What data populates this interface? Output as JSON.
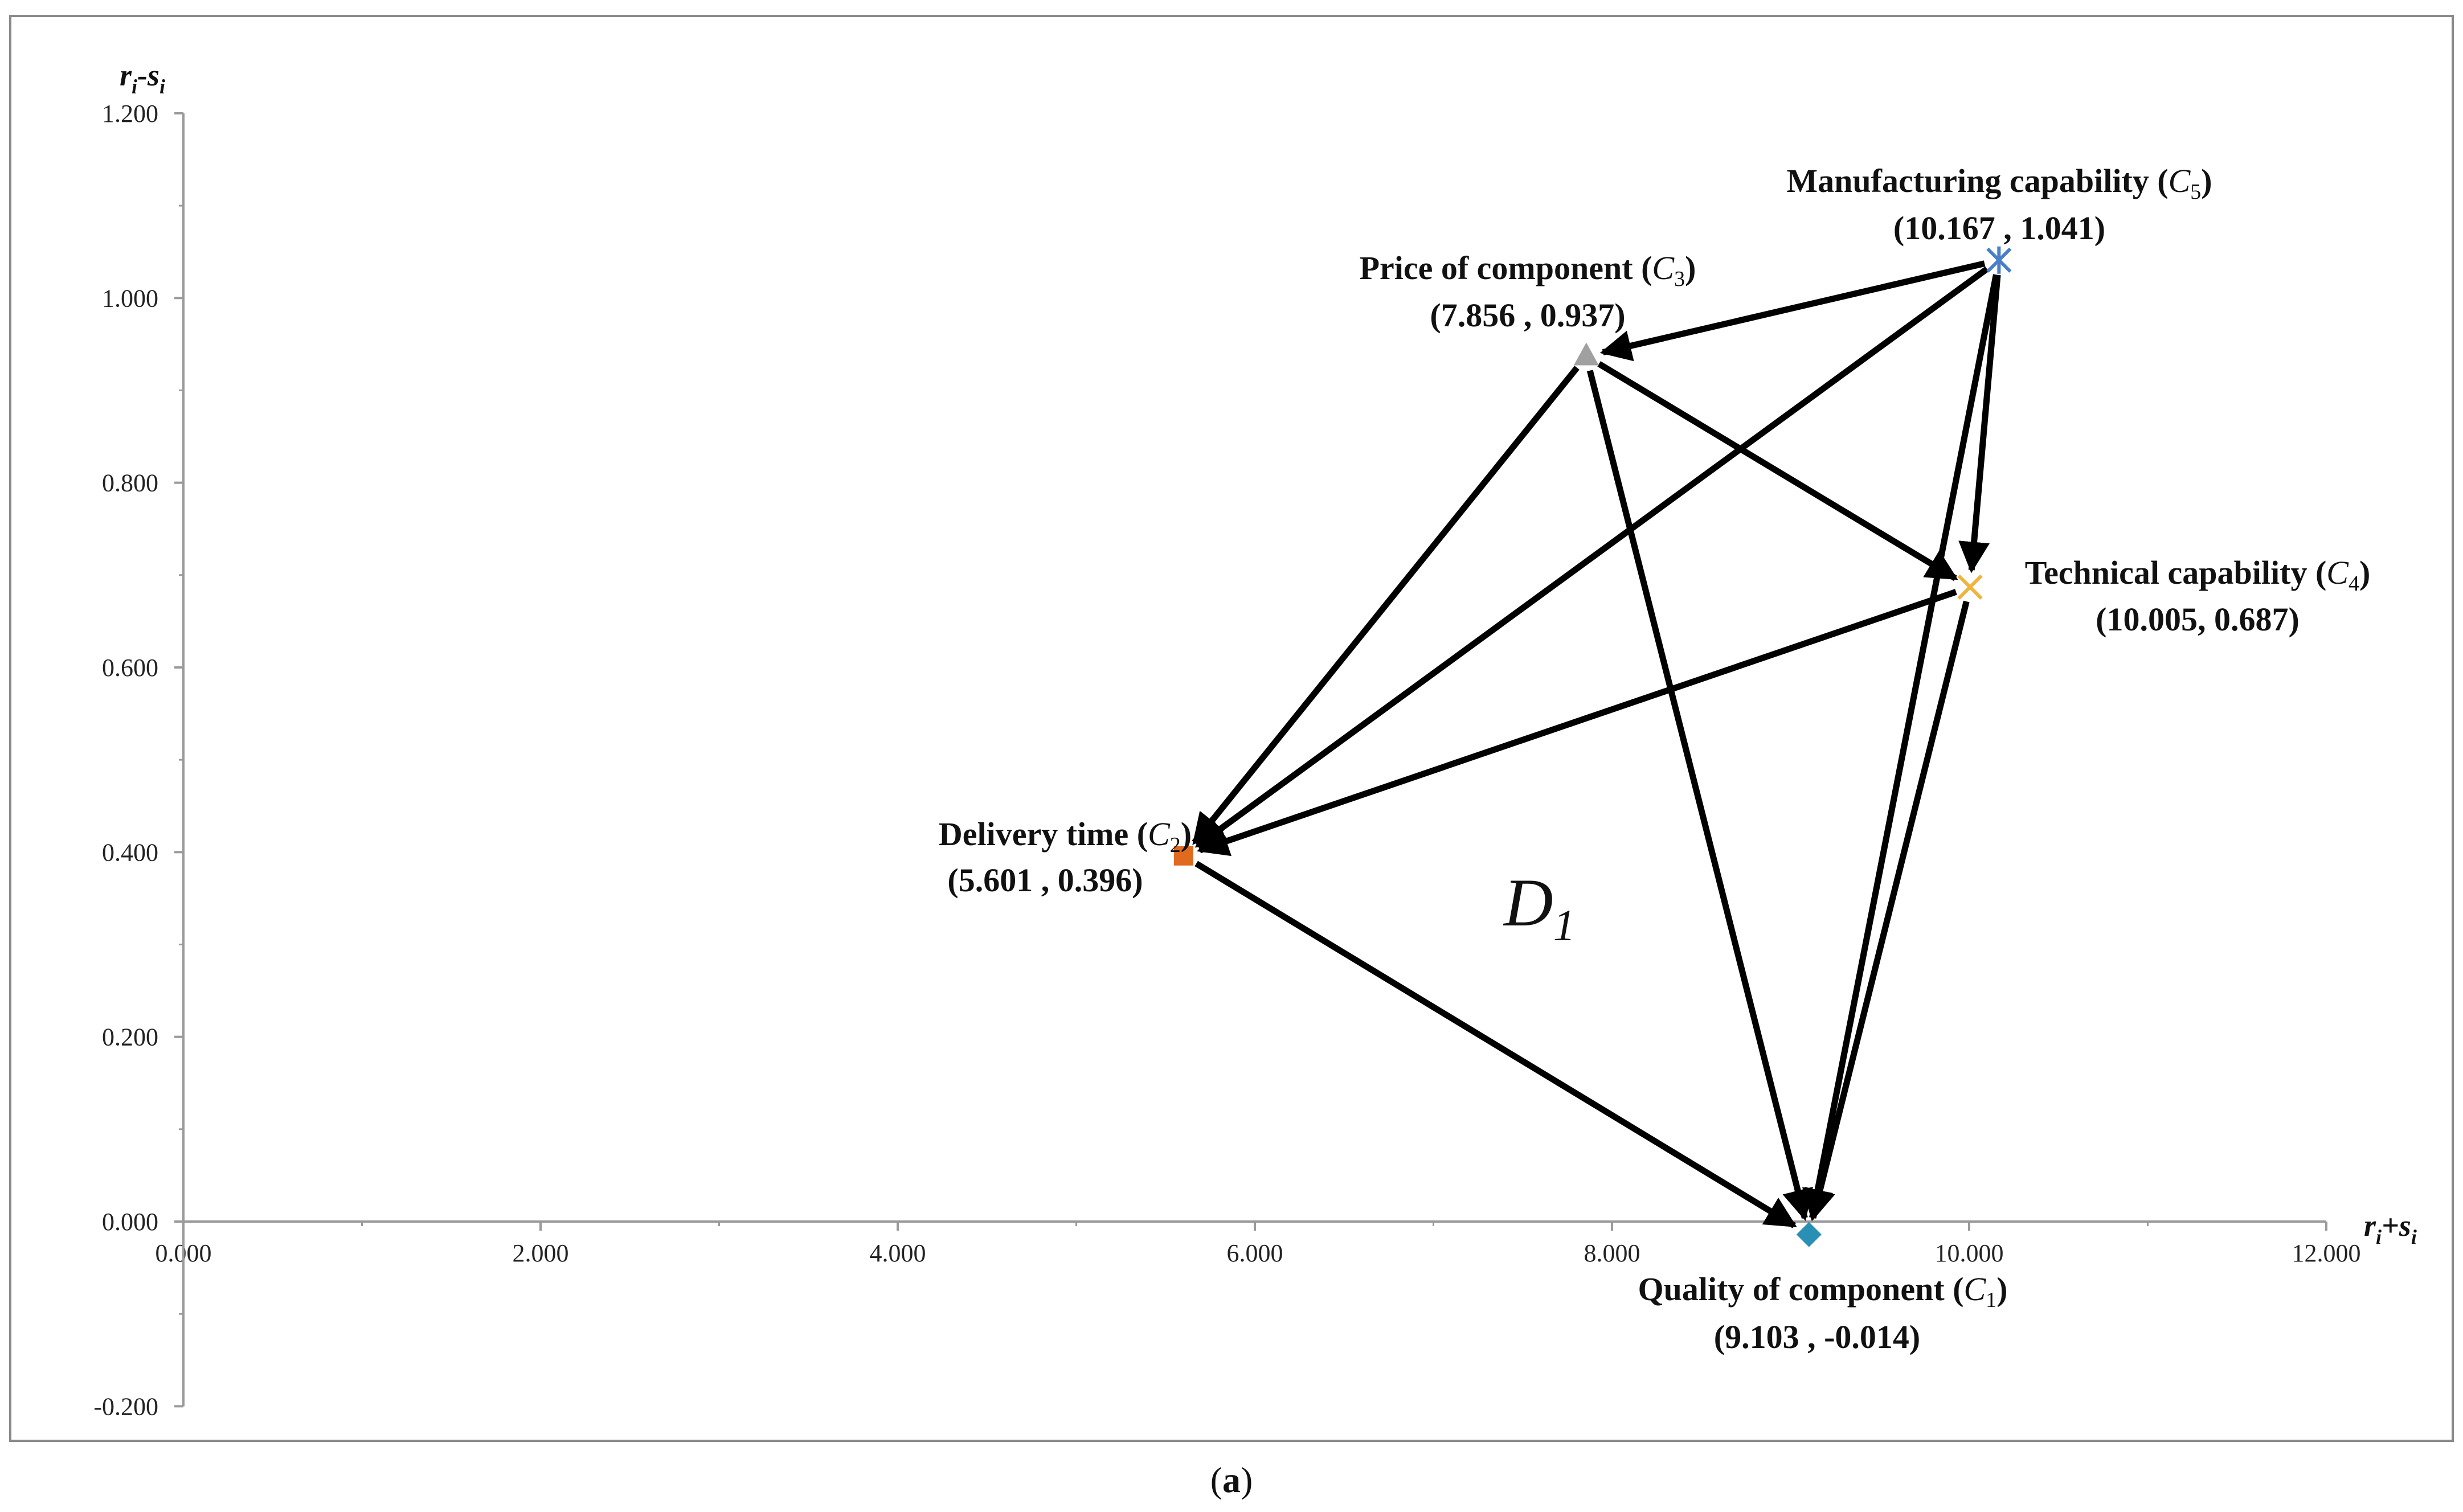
{
  "chart_data": {
    "type": "scatter",
    "xlabel": {
      "main": "r",
      "sub1": "i",
      "op": "+s",
      "sub2": "i"
    },
    "ylabel": {
      "main": "r",
      "sub1": "i",
      "op": "-s",
      "sub2": "i"
    },
    "xlim": [
      0,
      12
    ],
    "ylim": [
      -0.2,
      1.2
    ],
    "x_ticks": [
      0,
      2,
      4,
      6,
      8,
      10,
      12
    ],
    "y_ticks": [
      -0.2,
      0,
      0.2,
      0.4,
      0.6,
      0.8,
      1.0,
      1.2
    ],
    "x_tick_labels": [
      "0.000",
      "2.000",
      "4.000",
      "6.000",
      "8.000",
      "10.000",
      "12.000"
    ],
    "y_tick_labels": [
      "-0.200",
      "0.000",
      "0.200",
      "0.400",
      "0.600",
      "0.800",
      "1.000",
      "1.200"
    ],
    "points": [
      {
        "id": "C1",
        "name": "Quality of component",
        "code": "C",
        "sub": "1",
        "coord": "(9.103 , -0.014)",
        "x": 9.103,
        "y": -0.014,
        "marker": "diamond",
        "color": "#2a8fb5"
      },
      {
        "id": "C2",
        "name": "Delivery time",
        "code": "C",
        "sub": "2",
        "coord": "(5.601 , 0.396)",
        "x": 5.601,
        "y": 0.396,
        "marker": "square",
        "color": "#e06a1e"
      },
      {
        "id": "C3",
        "name": "Price of component",
        "code": "C",
        "sub": "3",
        "coord": "(7.856 , 0.937)",
        "x": 7.856,
        "y": 0.937,
        "marker": "triangle",
        "color": "#a0a0a0"
      },
      {
        "id": "C4",
        "name": "Technical capability",
        "code": "C",
        "sub": "4",
        "coord": "(10.005, 0.687)",
        "x": 10.005,
        "y": 0.687,
        "marker": "x",
        "color": "#f0b43c"
      },
      {
        "id": "C5",
        "name": "Manufacturing capability",
        "code": "C",
        "sub": "5",
        "coord": "(10.167 , 1.041)",
        "x": 10.167,
        "y": 1.041,
        "marker": "star",
        "color": "#4a7ec8"
      }
    ],
    "arrows": [
      {
        "from": "C5",
        "to": "C3"
      },
      {
        "from": "C5",
        "to": "C2"
      },
      {
        "from": "C5",
        "to": "C4"
      },
      {
        "from": "C5",
        "to": "C1"
      },
      {
        "from": "C3",
        "to": "C2"
      },
      {
        "from": "C3",
        "to": "C4"
      },
      {
        "from": "C3",
        "to": "C1"
      },
      {
        "from": "C4",
        "to": "C2"
      },
      {
        "from": "C4",
        "to": "C1"
      },
      {
        "from": "C2",
        "to": "C1"
      }
    ],
    "region_label": {
      "main": "D",
      "sub": "1"
    },
    "caption": {
      "open": "(",
      "letter": "a",
      "close": ")"
    }
  }
}
